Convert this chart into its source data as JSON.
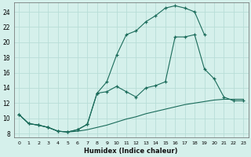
{
  "xlabel": "Humidex (Indice chaleur)",
  "bg_color": "#d5f0eb",
  "grid_color": "#b8ddd7",
  "line_color": "#1a6b5a",
  "xlim": [
    -0.5,
    23.5
  ],
  "ylim": [
    7.5,
    25.2
  ],
  "xticks": [
    0,
    1,
    2,
    3,
    4,
    5,
    6,
    7,
    8,
    9,
    10,
    11,
    12,
    13,
    14,
    15,
    16,
    17,
    18,
    19,
    20,
    21,
    22,
    23
  ],
  "yticks": [
    8,
    10,
    12,
    14,
    16,
    18,
    20,
    22,
    24
  ],
  "line1_x": [
    0,
    1,
    2,
    3,
    4,
    5,
    6,
    7,
    8,
    9,
    10,
    11,
    12,
    13,
    14,
    15,
    16,
    17,
    18,
    19,
    20,
    21,
    22,
    23
  ],
  "line1_y": [
    10.5,
    9.3,
    9.1,
    8.8,
    8.3,
    8.2,
    8.3,
    8.5,
    8.8,
    9.1,
    9.5,
    9.9,
    10.2,
    10.6,
    10.9,
    11.2,
    11.5,
    11.8,
    12.0,
    12.2,
    12.4,
    12.5,
    12.5,
    12.5
  ],
  "line2_x": [
    0,
    1,
    2,
    3,
    4,
    5,
    6,
    7,
    8,
    9,
    10,
    11,
    12,
    13,
    14,
    15,
    16,
    17,
    18,
    19,
    20,
    21,
    22,
    23
  ],
  "line2_y": [
    10.5,
    9.3,
    9.1,
    8.8,
    8.3,
    8.2,
    8.5,
    9.2,
    13.3,
    13.5,
    14.2,
    13.5,
    12.8,
    14.0,
    14.3,
    14.8,
    20.7,
    20.7,
    21.0,
    16.5,
    15.2,
    12.8,
    12.3,
    12.3
  ],
  "line3_x": [
    0,
    1,
    2,
    3,
    4,
    5,
    6,
    7,
    8,
    9,
    10,
    11,
    12,
    13,
    14,
    15,
    16,
    17,
    18,
    19,
    20,
    21,
    22,
    23
  ],
  "line3_y": [
    10.5,
    9.3,
    9.1,
    8.8,
    8.3,
    8.2,
    8.5,
    9.2,
    13.3,
    14.8,
    18.3,
    21.0,
    21.5,
    22.7,
    23.5,
    24.5,
    24.8,
    24.5,
    24.0,
    21.0,
    null,
    null,
    null,
    null
  ]
}
